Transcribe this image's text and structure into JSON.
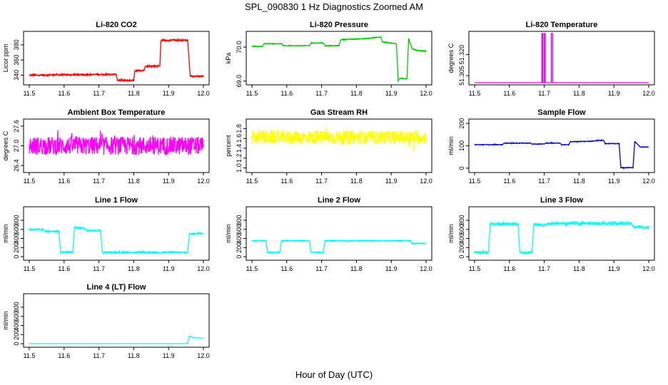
{
  "figure": {
    "title": "SPL_090830  1 Hz Diagnostics Zoomed AM",
    "xlabel": "Hour of Day (UTC)"
  },
  "chart_data": [
    {
      "type": "line",
      "title": "Li-820 CO2",
      "ylabel": "Licor ppm",
      "color": "#ff0000",
      "xlim": [
        11.5,
        12.0
      ],
      "ylim": [
        330,
        395
      ],
      "xticks": [
        "11.5",
        "11.6",
        "11.7",
        "11.8",
        "11.9",
        "12.0"
      ],
      "yticks": [
        "340",
        "360",
        "380"
      ],
      "series": [
        {
          "noise": 1.2,
          "points": [
            [
              11.5,
              340
            ],
            [
              11.75,
              341
            ],
            [
              11.753,
              333
            ],
            [
              11.8,
              333
            ],
            [
              11.803,
              346
            ],
            [
              11.83,
              346
            ],
            [
              11.833,
              352
            ],
            [
              11.875,
              352
            ],
            [
              11.878,
              386
            ],
            [
              11.955,
              386
            ],
            [
              11.962,
              339
            ],
            [
              12.0,
              338
            ]
          ]
        }
      ]
    },
    {
      "type": "line",
      "title": "Li-820 Pressure",
      "ylabel": "kPa",
      "color": "#00cc00",
      "xlim": [
        11.5,
        12.0
      ],
      "ylim": [
        68.95,
        70.4
      ],
      "xticks": [
        "11.5",
        "11.6",
        "11.7",
        "11.8",
        "11.9",
        "12.0"
      ],
      "yticks": [
        "69.0",
        "70.0"
      ],
      "series": [
        {
          "noise": 0.012,
          "points": [
            [
              11.5,
              70.02
            ],
            [
              11.53,
              70.02
            ],
            [
              11.535,
              70.1
            ],
            [
              11.585,
              70.1
            ],
            [
              11.59,
              70.04
            ],
            [
              11.665,
              70.04
            ],
            [
              11.67,
              70.12
            ],
            [
              11.705,
              70.12
            ],
            [
              11.71,
              70.04
            ],
            [
              11.75,
              70.04
            ],
            [
              11.755,
              70.22
            ],
            [
              11.83,
              70.25
            ],
            [
              11.87,
              70.3
            ],
            [
              11.875,
              70.15
            ],
            [
              11.915,
              70.1
            ],
            [
              11.92,
              69.0
            ],
            [
              11.925,
              69.08
            ],
            [
              11.945,
              69.06
            ],
            [
              11.95,
              70.25
            ],
            [
              11.96,
              69.95
            ],
            [
              11.975,
              69.9
            ],
            [
              12.0,
              69.88
            ]
          ]
        }
      ]
    },
    {
      "type": "line",
      "title": "Li-820 Temperature",
      "ylabel": "degrees C",
      "color": "#dd00dd",
      "xlim": [
        11.5,
        12.0
      ],
      "ylim": [
        51.3,
        51.335
      ],
      "xticks": [
        "11.5",
        "11.6",
        "11.7",
        "11.8",
        "11.9",
        "12.0"
      ],
      "yticks": [
        "51.305",
        "51.320"
      ],
      "series": [
        {
          "noise": 0,
          "points": [
            [
              11.5,
              51.3
            ],
            [
              11.693,
              51.3
            ],
            [
              11.693,
              51.335
            ],
            [
              11.696,
              51.335
            ],
            [
              11.696,
              51.3
            ],
            [
              11.7,
              51.3
            ],
            [
              11.7,
              51.335
            ],
            [
              11.703,
              51.335
            ],
            [
              11.703,
              51.3
            ],
            [
              11.72,
              51.3
            ],
            [
              11.72,
              51.335
            ],
            [
              11.724,
              51.335
            ],
            [
              11.724,
              51.3
            ],
            [
              12.0,
              51.3
            ]
          ]
        }
      ]
    },
    {
      "type": "line",
      "title": "Ambient Box Temperature",
      "ylabel": "degrees C",
      "color": "#ff00ff",
      "xlim": [
        11.5,
        12.0
      ],
      "ylim": [
        26.25,
        27.75
      ],
      "xticks": [
        "11.5",
        "11.6",
        "11.7",
        "11.8",
        "11.9",
        "12.0"
      ],
      "yticks": [
        "26.4",
        "27.0",
        "27.6"
      ],
      "series": [
        {
          "noise": 0.28,
          "points": [
            [
              11.5,
              27.0
            ],
            [
              12.0,
              27.0
            ]
          ]
        }
      ]
    },
    {
      "type": "line",
      "title": "Gas Stream RH",
      "ylabel": "percent",
      "color": "#ffff00",
      "xlim": [
        11.5,
        12.0
      ],
      "ylim": [
        0.95,
        1.95
      ],
      "xticks": [
        "11.5",
        "11.6",
        "11.7",
        "11.8",
        "11.9",
        "12.0"
      ],
      "yticks": [
        "1.0",
        "1.2",
        "1.4",
        "1.6",
        "1.8"
      ],
      "series": [
        {
          "noise": 0.14,
          "points": [
            [
              11.5,
              1.62
            ],
            [
              12.0,
              1.62
            ]
          ]
        }
      ]
    },
    {
      "type": "line",
      "title": "Sample Flow",
      "ylabel": "ml/min",
      "color": "#0000cc",
      "xlim": [
        11.5,
        12.0
      ],
      "ylim": [
        -10,
        210
      ],
      "xticks": [
        "11.5",
        "11.6",
        "11.7",
        "11.8",
        "11.9",
        "12.0"
      ],
      "yticks": [
        "0",
        "100",
        "200"
      ],
      "series": [
        {
          "noise": 1.5,
          "points": [
            [
              11.5,
              105
            ],
            [
              11.58,
              105
            ],
            [
              11.585,
              112
            ],
            [
              11.66,
              112
            ],
            [
              11.665,
              108
            ],
            [
              11.7,
              108
            ],
            [
              11.705,
              112
            ],
            [
              11.745,
              112
            ],
            [
              11.75,
              105
            ],
            [
              11.77,
              105
            ],
            [
              11.775,
              118
            ],
            [
              11.83,
              120
            ],
            [
              11.87,
              125
            ],
            [
              11.875,
              110
            ],
            [
              11.915,
              110
            ],
            [
              11.92,
              2
            ],
            [
              11.955,
              2
            ],
            [
              11.96,
              120
            ],
            [
              11.975,
              95
            ],
            [
              12.0,
              95
            ]
          ]
        }
      ]
    },
    {
      "type": "line",
      "title": "Line 1 Flow",
      "ylabel": "ml/min",
      "color": "#00ffff",
      "xlim": [
        11.5,
        12.0
      ],
      "ylim": [
        -30,
        1050
      ],
      "xticks": [
        "11.5",
        "11.6",
        "11.7",
        "11.8",
        "11.9",
        "12.0"
      ],
      "yticks": [
        "0",
        "200",
        "400",
        "600",
        "800"
      ],
      "series": [
        {
          "noise": 20,
          "points": [
            [
              11.5,
              600
            ],
            [
              11.54,
              600
            ],
            [
              11.545,
              555
            ],
            [
              11.585,
              555
            ],
            [
              11.59,
              100
            ],
            [
              11.625,
              100
            ],
            [
              11.63,
              640
            ],
            [
              11.66,
              620
            ],
            [
              11.665,
              570
            ],
            [
              11.705,
              570
            ],
            [
              11.71,
              95
            ],
            [
              11.955,
              95
            ],
            [
              11.96,
              500
            ],
            [
              12.0,
              520
            ]
          ]
        }
      ]
    },
    {
      "type": "line",
      "title": "Line 2 Flow",
      "ylabel": "ml/min",
      "color": "#00ffff",
      "xlim": [
        11.5,
        12.0
      ],
      "ylim": [
        -30,
        1050
      ],
      "xticks": [
        "11.5",
        "11.6",
        "11.7",
        "11.8",
        "11.9",
        "12.0"
      ],
      "yticks": [
        "0",
        "200",
        "400",
        "600",
        "800"
      ],
      "series": [
        {
          "noise": 12,
          "points": [
            [
              11.5,
              350
            ],
            [
              11.54,
              350
            ],
            [
              11.545,
              95
            ],
            [
              11.58,
              95
            ],
            [
              11.585,
              350
            ],
            [
              11.665,
              350
            ],
            [
              11.67,
              95
            ],
            [
              11.705,
              95
            ],
            [
              11.71,
              350
            ],
            [
              11.955,
              350
            ],
            [
              11.96,
              290
            ],
            [
              12.0,
              290
            ]
          ]
        }
      ]
    },
    {
      "type": "line",
      "title": "Line 3 Flow",
      "ylabel": "ml/min",
      "color": "#00ffff",
      "xlim": [
        11.5,
        12.0
      ],
      "ylim": [
        -30,
        1050
      ],
      "xticks": [
        "11.5",
        "11.6",
        "11.7",
        "11.8",
        "11.9",
        "12.0"
      ],
      "yticks": [
        "0",
        "200",
        "400",
        "600",
        "800"
      ],
      "series": [
        {
          "noise": 35,
          "points": [
            [
              11.5,
              95
            ],
            [
              11.54,
              95
            ],
            [
              11.545,
              720
            ],
            [
              11.625,
              720
            ],
            [
              11.63,
              95
            ],
            [
              11.665,
              95
            ],
            [
              11.67,
              700
            ],
            [
              11.705,
              700
            ],
            [
              11.71,
              730
            ],
            [
              11.95,
              730
            ],
            [
              11.955,
              660
            ],
            [
              12.0,
              640
            ]
          ]
        }
      ]
    },
    {
      "type": "line",
      "title": "Line 4 (LT) Flow",
      "ylabel": "ml/min",
      "color": "#00ffff",
      "xlim": [
        11.5,
        12.0
      ],
      "ylim": [
        -30,
        1050
      ],
      "xticks": [
        "11.5",
        "11.6",
        "11.7",
        "11.8",
        "11.9",
        "12.0"
      ],
      "yticks": [
        "0",
        "200",
        "400",
        "600",
        "800"
      ],
      "series": [
        {
          "noise": 1,
          "points": [
            [
              11.5,
              2
            ],
            [
              11.955,
              2
            ],
            [
              11.96,
              170
            ],
            [
              11.97,
              130
            ],
            [
              12.0,
              125
            ]
          ]
        }
      ]
    }
  ]
}
